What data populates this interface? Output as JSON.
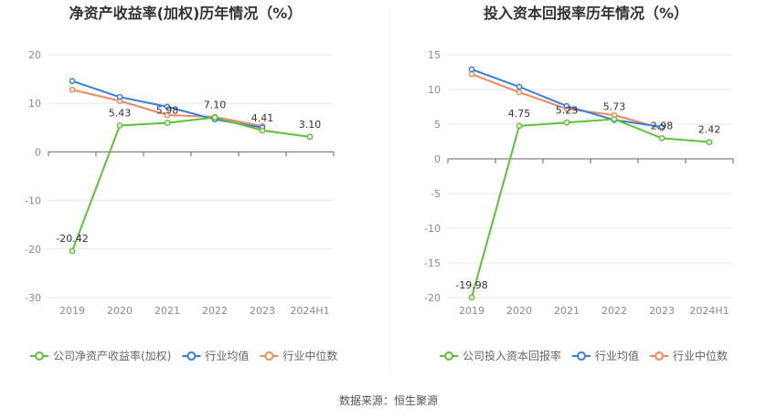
{
  "source_text": "数据来源：恒生聚源",
  "colors": {
    "company": "#5cc236",
    "avg": "#3b7ddd",
    "median": "#f2885c",
    "grid": "#e8e8e8",
    "axis": "#666666"
  },
  "chart_data": [
    {
      "type": "line",
      "title": "净资产收益率(加权)历年情况（%）",
      "categories": [
        "2019",
        "2020",
        "2021",
        "2022",
        "2023",
        "2024H1"
      ],
      "ylim": [
        -30,
        20
      ],
      "yticks": [
        20,
        10,
        0,
        -10,
        -20,
        -30
      ],
      "grid": true,
      "legend_position": "bottom-left",
      "series": [
        {
          "name": "公司净资产收益率(加权)",
          "values": [
            -20.42,
            5.43,
            5.98,
            7.1,
            4.41,
            3.1
          ],
          "labels": [
            "-20.42",
            "5.43",
            "5.98",
            "7.10",
            "4.41",
            "3.10"
          ]
        },
        {
          "name": "行业均值",
          "values": [
            14.6,
            11.3,
            9.3,
            6.7,
            5.0,
            null
          ]
        },
        {
          "name": "行业中位数",
          "values": [
            12.8,
            10.5,
            7.6,
            7.2,
            5.3,
            null
          ]
        }
      ]
    },
    {
      "type": "line",
      "title": "投入资本回报率历年情况（%）",
      "categories": [
        "2019",
        "2020",
        "2021",
        "2022",
        "2023",
        "2024H1"
      ],
      "ylim": [
        -20,
        15
      ],
      "yticks": [
        15,
        10,
        5,
        0,
        -5,
        -10,
        -15,
        -20
      ],
      "grid": true,
      "legend_position": "bottom-left",
      "series": [
        {
          "name": "公司投入资本回报率",
          "values": [
            -19.98,
            4.75,
            5.23,
            5.73,
            2.98,
            2.42
          ],
          "labels": [
            "-19.98",
            "4.75",
            "5.23",
            "5.73",
            "2.98",
            "2.42"
          ]
        },
        {
          "name": "行业均值",
          "values": [
            12.9,
            10.4,
            7.6,
            5.6,
            4.6,
            null
          ]
        },
        {
          "name": "行业中位数",
          "values": [
            12.2,
            9.6,
            7.2,
            6.3,
            4.4,
            null
          ]
        }
      ]
    }
  ]
}
